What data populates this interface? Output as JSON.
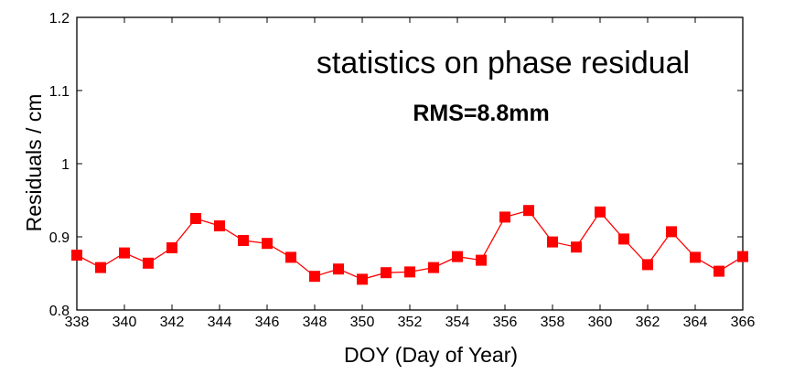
{
  "chart_data": {
    "type": "line",
    "title": "",
    "xlabel": "DOY (Day of Year)",
    "ylabel": "Residuals / cm",
    "xlim": [
      338,
      366
    ],
    "ylim": [
      0.8,
      1.2
    ],
    "xticks": [
      338,
      340,
      342,
      344,
      346,
      348,
      350,
      352,
      354,
      356,
      358,
      360,
      362,
      364,
      366
    ],
    "yticks": [
      0.8,
      0.9,
      1,
      1.1,
      1.2
    ],
    "ytick_labels": [
      "0.8",
      "0.9",
      "1",
      "1.1",
      "1.2"
    ],
    "grid": false,
    "annotations": [
      "statistics on phase residual",
      "RMS=8.8mm"
    ],
    "series": [
      {
        "color": "#ff0000",
        "marker": "square",
        "x": [
          338,
          339,
          340,
          341,
          342,
          343,
          344,
          345,
          346,
          347,
          348,
          349,
          350,
          351,
          352,
          353,
          354,
          355,
          356,
          357,
          358,
          359,
          360,
          361,
          362,
          363,
          364,
          365,
          366
        ],
        "y": [
          0.875,
          0.858,
          0.878,
          0.864,
          0.885,
          0.925,
          0.915,
          0.895,
          0.891,
          0.872,
          0.846,
          0.856,
          0.842,
          0.851,
          0.852,
          0.858,
          0.873,
          0.868,
          0.927,
          0.936,
          0.893,
          0.886,
          0.934,
          0.897,
          0.862,
          0.907,
          0.872,
          0.853,
          0.873
        ]
      }
    ]
  }
}
